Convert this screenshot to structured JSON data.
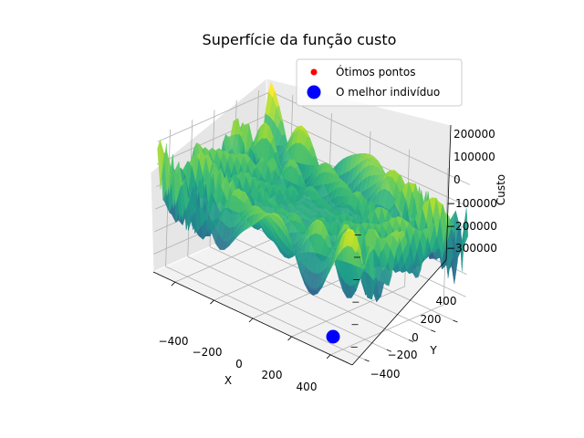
{
  "chart_data": {
    "type": "surface3d",
    "title": "Superfície da função custo",
    "xlabel": "X",
    "ylabel": "Y",
    "zlabel": "Custo",
    "x_ticks": [
      "−400",
      "−200",
      "0",
      "200",
      "400"
    ],
    "y_ticks": [
      "−400",
      "−200",
      "0",
      "200",
      "400"
    ],
    "z_ticks": [
      "200000",
      "100000",
      "0",
      "−100000",
      "−200000",
      "−300000"
    ],
    "xlim": [
      -512,
      512
    ],
    "ylim": [
      -512,
      512
    ],
    "zlim": [
      -380000,
      230000
    ],
    "colormap": "viridis",
    "grid": true,
    "legend_position": "upper right",
    "series": [
      {
        "name": "Ótimos pontos",
        "marker": "dot",
        "color": "#ff0000",
        "points": []
      },
      {
        "name": "O melhor indivíduo",
        "marker": "dot",
        "color": "#0000ff",
        "points": [
          {
            "x": 400,
            "y": -400,
            "z": -380000
          }
        ]
      }
    ]
  }
}
